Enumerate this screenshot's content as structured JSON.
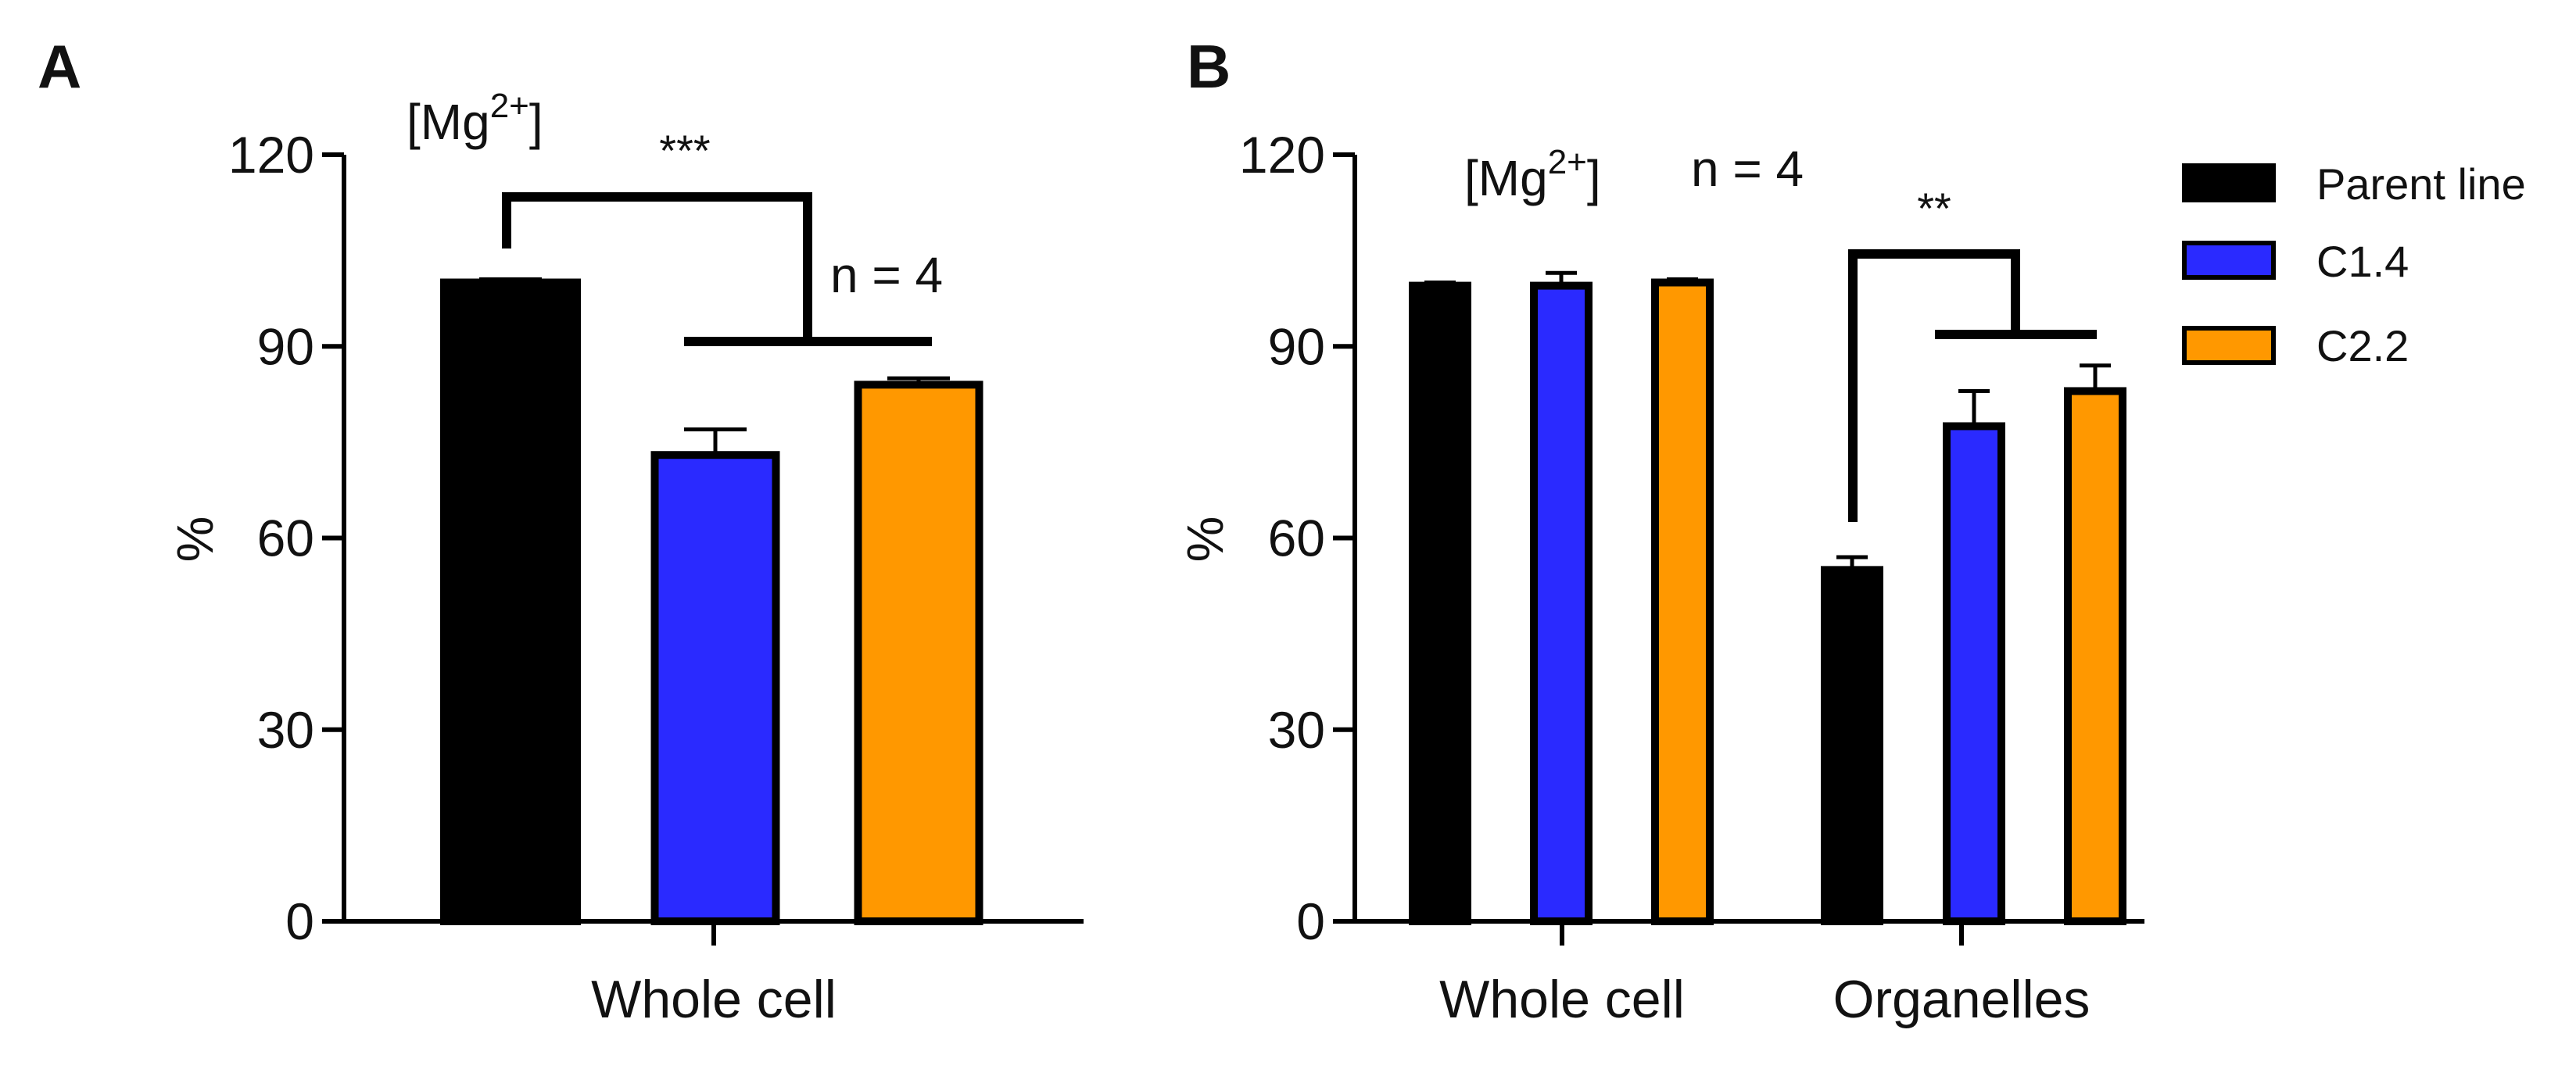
{
  "chart_data": [
    {
      "type": "bar",
      "panel": "A",
      "title": "[Mg2+]",
      "title_main": "[Mg",
      "title_sup": "2+",
      "title_close": "]",
      "ylabel": "%",
      "xlabel": "",
      "ylim": [
        0,
        120
      ],
      "yticks": [
        0,
        30,
        60,
        90,
        120
      ],
      "categories": [
        "Whole cell"
      ],
      "series": [
        {
          "name": "Parent line",
          "color": "#000000",
          "values": [
            100
          ],
          "errors": [
            0.5
          ]
        },
        {
          "name": "C1.4",
          "color": "#2a2aff",
          "values": [
            73
          ],
          "errors": [
            4
          ]
        },
        {
          "name": "C2.2",
          "color": "#ff9800",
          "values": [
            84
          ],
          "errors": [
            1
          ]
        }
      ],
      "annotations": {
        "significance": "***",
        "n": "n = 4"
      }
    },
    {
      "type": "bar",
      "panel": "B",
      "title": "[Mg2+]",
      "title_main": "[Mg",
      "title_sup": "2+",
      "title_close": "]",
      "ylabel": "%",
      "xlabel": "",
      "ylim": [
        0,
        120
      ],
      "yticks": [
        0,
        30,
        60,
        90,
        120
      ],
      "categories": [
        "Whole cell",
        "Organelles"
      ],
      "series": [
        {
          "name": "Parent line",
          "color": "#000000",
          "values": [
            99.5,
            55
          ],
          "errors": [
            0.5,
            2
          ]
        },
        {
          "name": "C1.4",
          "color": "#2a2aff",
          "values": [
            99.5,
            77.5
          ],
          "errors": [
            2,
            5.5
          ]
        },
        {
          "name": "C2.2",
          "color": "#ff9800",
          "values": [
            100,
            83
          ],
          "errors": [
            0.5,
            4
          ]
        }
      ],
      "annotations": {
        "significance": "**",
        "n": "n = 4"
      },
      "legend": [
        {
          "label": "Parent line",
          "color": "#000000"
        },
        {
          "label": "C1.4",
          "color": "#2a2aff"
        },
        {
          "label": "C2.2",
          "color": "#ff9800"
        }
      ]
    }
  ]
}
